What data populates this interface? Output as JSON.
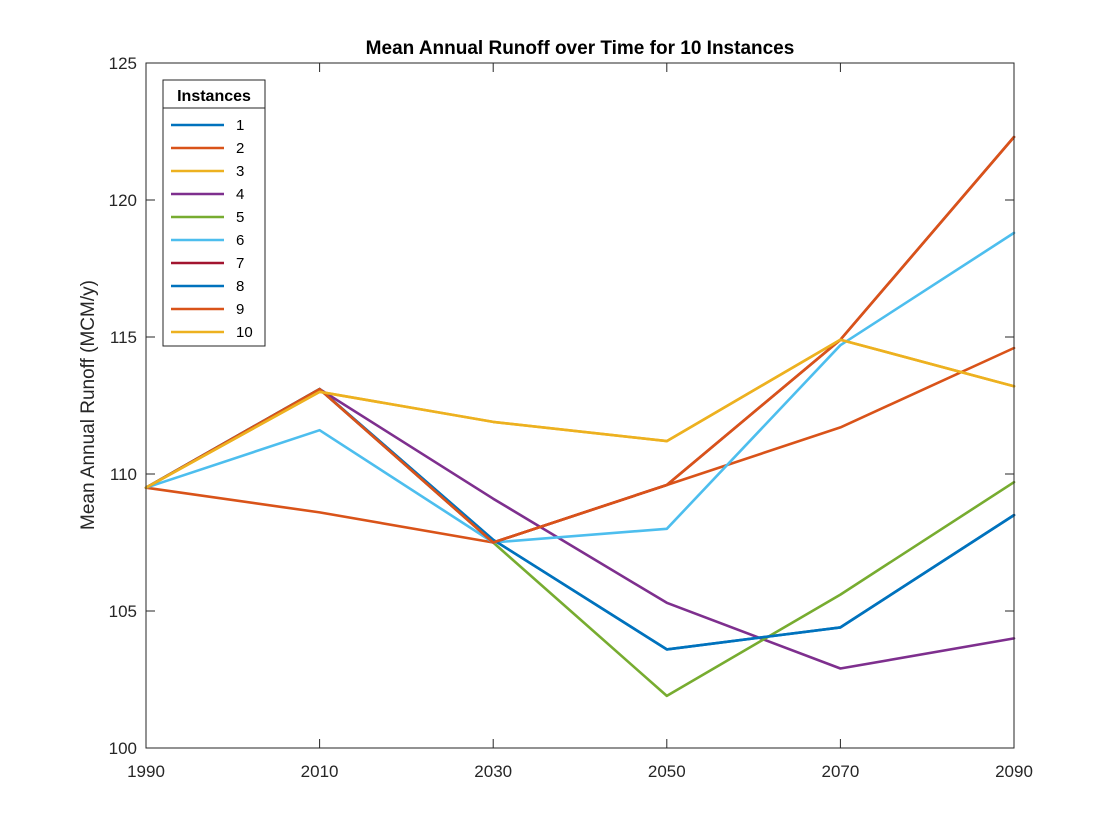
{
  "chart_data": {
    "type": "line",
    "title": "Mean Annual Runoff over Time for 10 Instances",
    "xlabel": "",
    "ylabel": "Mean Annual Runoff (MCM/y)",
    "x": [
      1990,
      2010,
      2030,
      2050,
      2070,
      2090
    ],
    "xlim": [
      1990,
      2090
    ],
    "ylim": [
      100,
      125
    ],
    "xticks": [
      "1990",
      "2010",
      "2030",
      "2050",
      "2070",
      "2090"
    ],
    "yticks": [
      "100",
      "105",
      "110",
      "115",
      "120",
      "125"
    ],
    "grid": false,
    "legend": {
      "title": "Instances",
      "position": "top-left"
    },
    "series": [
      {
        "name": "1",
        "color": "#0072BD",
        "values": [
          109.5,
          113.1,
          107.6,
          103.6,
          104.4,
          108.5
        ]
      },
      {
        "name": "2",
        "color": "#D95319",
        "values": [
          109.5,
          108.6,
          107.5,
          109.6,
          111.7,
          114.6
        ]
      },
      {
        "name": "3",
        "color": "#EDB120",
        "values": [
          109.5,
          113.0,
          111.9,
          111.2,
          114.9,
          113.2
        ]
      },
      {
        "name": "4",
        "color": "#7E2F8E",
        "values": [
          109.5,
          113.1,
          109.1,
          105.3,
          102.9,
          104.0
        ]
      },
      {
        "name": "5",
        "color": "#77AC30",
        "values": [
          109.5,
          113.1,
          107.5,
          101.9,
          105.6,
          109.7
        ]
      },
      {
        "name": "6",
        "color": "#4DBEEE",
        "values": [
          109.5,
          111.6,
          107.5,
          108.0,
          114.7,
          118.8
        ]
      },
      {
        "name": "7",
        "color": "#A2142F",
        "values": [
          109.5,
          113.1,
          107.5,
          109.6,
          114.9,
          122.3
        ]
      },
      {
        "name": "8",
        "color": "#0072BD",
        "values": [
          109.5,
          113.1,
          107.6,
          103.6,
          104.4,
          108.5
        ]
      },
      {
        "name": "9",
        "color": "#D95319",
        "values": [
          109.5,
          113.1,
          107.5,
          109.6,
          114.9,
          122.3
        ]
      },
      {
        "name": "10",
        "color": "#EDB120",
        "values": [
          109.5,
          113.0,
          111.9,
          111.2,
          114.9,
          113.2
        ]
      }
    ]
  }
}
